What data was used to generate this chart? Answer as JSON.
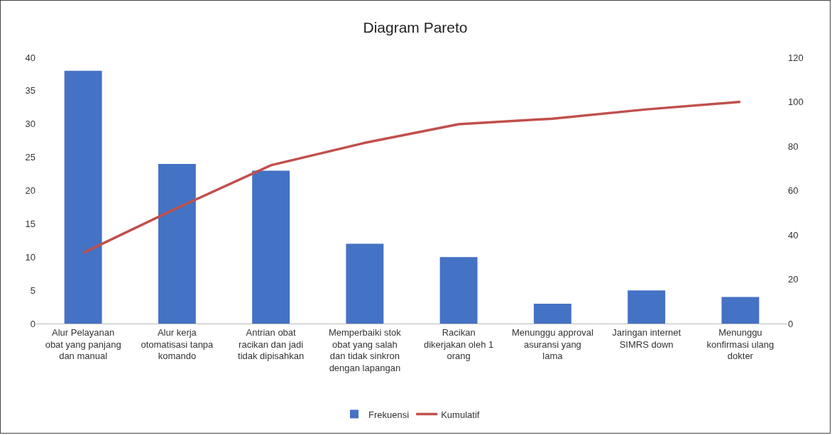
{
  "chart_data": {
    "type": "bar",
    "title": "Diagram Pareto",
    "categories": [
      "Alur Pelayanan obat yang panjang dan manual",
      "Alur kerja otomatisasi tanpa komando",
      "Antrian obat racikan dan jadi tidak dipisahkan",
      "Memperbaiki stok obat yang salah dan tidak sinkron dengan lapangan",
      "Racikan dikerjakan oleh 1 orang",
      "Menunggu approval asuransi yang lama",
      "Jaringan internet SIMRS down",
      "Menunggu konfirmasi ulang dokter"
    ],
    "series": [
      {
        "name": "Frekuensi",
        "color": "#4472c4",
        "values": [
          38,
          24,
          23,
          12,
          10,
          3,
          5,
          4
        ]
      },
      {
        "name": "Kumulatif",
        "type": "line",
        "axis": "y2",
        "color": "#c0504d",
        "values": [
          31.9,
          52.1,
          71.4,
          81.5,
          89.9,
          92.4,
          96.6,
          100
        ]
      }
    ],
    "ylim": [
      0,
      40
    ],
    "yticks": [
      0,
      5,
      10,
      15,
      20,
      25,
      30,
      35,
      40
    ],
    "y2lim": [
      0,
      120
    ],
    "y2ticks": [
      0,
      20,
      40,
      60,
      80,
      100,
      120
    ],
    "grid": false,
    "legend": "bottom",
    "marker": "none",
    "line_style": "solid"
  }
}
